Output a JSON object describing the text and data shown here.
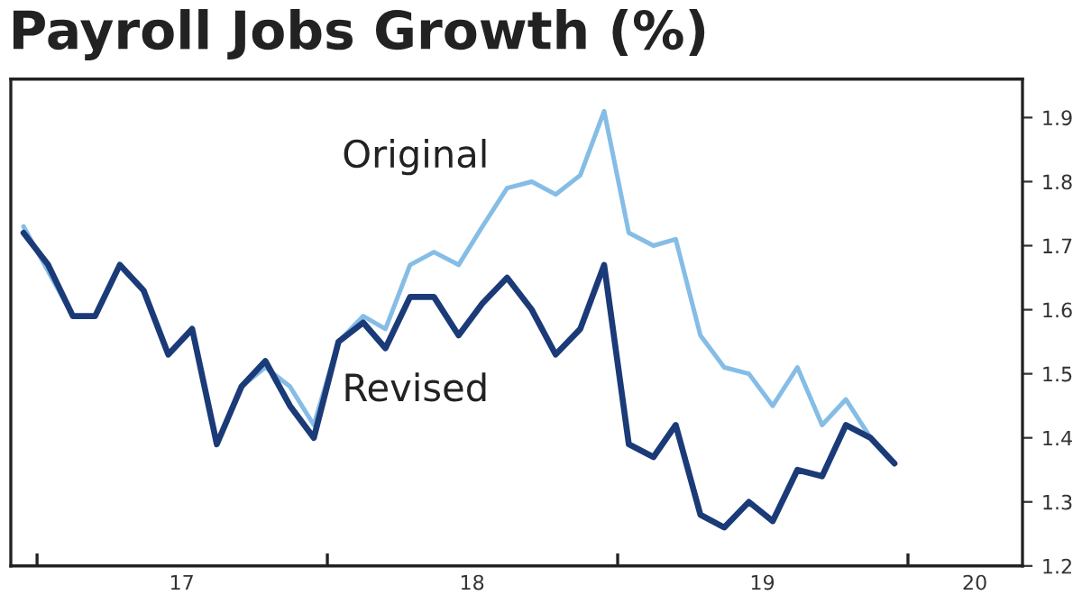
{
  "chart_data": {
    "type": "line",
    "title": "Payroll Jobs Growth (%)",
    "x": [
      "2016-12-15",
      "2017-01-15",
      "2017-02-15",
      "2017-03-15",
      "2017-04-15",
      "2017-05-15",
      "2017-06-15",
      "2017-07-15",
      "2017-08-15",
      "2017-09-15",
      "2017-10-15",
      "2017-11-15",
      "2017-12-15",
      "2018-01-15",
      "2018-02-15",
      "2018-03-15",
      "2018-04-15",
      "2018-05-15",
      "2018-06-15",
      "2018-07-15",
      "2018-08-15",
      "2018-09-15",
      "2018-10-15",
      "2018-11-15",
      "2018-12-15",
      "2019-01-15",
      "2019-02-15",
      "2019-03-15",
      "2019-04-15",
      "2019-05-15",
      "2019-06-15",
      "2019-07-15",
      "2019-08-15",
      "2019-09-15",
      "2019-10-15",
      "2019-11-15",
      "2019-12-15"
    ],
    "series": [
      {
        "name": "Original",
        "color": "#85bde6",
        "values": [
          1.73,
          1.66,
          1.59,
          1.59,
          1.67,
          1.63,
          1.53,
          1.57,
          1.39,
          1.48,
          1.51,
          1.48,
          1.42,
          1.55,
          1.59,
          1.57,
          1.67,
          1.69,
          1.67,
          1.73,
          1.79,
          1.8,
          1.78,
          1.81,
          1.91,
          1.72,
          1.7,
          1.71,
          1.56,
          1.51,
          1.5,
          1.45,
          1.51,
          1.42,
          1.46,
          1.4,
          null
        ]
      },
      {
        "name": "Revised",
        "color": "#1b3a78",
        "values": [
          1.72,
          1.67,
          1.59,
          1.59,
          1.67,
          1.63,
          1.53,
          1.57,
          1.39,
          1.48,
          1.52,
          1.45,
          1.4,
          1.55,
          1.58,
          1.54,
          1.62,
          1.62,
          1.56,
          1.61,
          1.65,
          1.6,
          1.53,
          1.57,
          1.67,
          1.39,
          1.37,
          1.42,
          1.28,
          1.26,
          1.3,
          1.27,
          1.35,
          1.34,
          1.42,
          1.4,
          1.36
        ]
      }
    ],
    "xlim": [
      "2016-11-29",
      "2020-05-24"
    ],
    "xticks": [
      {
        "value": "2017-01-01",
        "label": null
      },
      {
        "value": "2017-07-02",
        "label": "17"
      },
      {
        "value": "2018-01-01",
        "label": null
      },
      {
        "value": "2018-07-02",
        "label": "18"
      },
      {
        "value": "2019-01-01",
        "label": null
      },
      {
        "value": "2019-07-02",
        "label": "19"
      },
      {
        "value": "2020-01-01",
        "label": null
      },
      {
        "value": "2020-03-25",
        "label": "20"
      }
    ],
    "ylim": [
      1.2,
      1.96
    ],
    "yticks": [
      1.2,
      1.3,
      1.4,
      1.5,
      1.6,
      1.7,
      1.8,
      1.9
    ],
    "grid": false,
    "legend": false,
    "marker": "none",
    "line_style": "solid"
  }
}
